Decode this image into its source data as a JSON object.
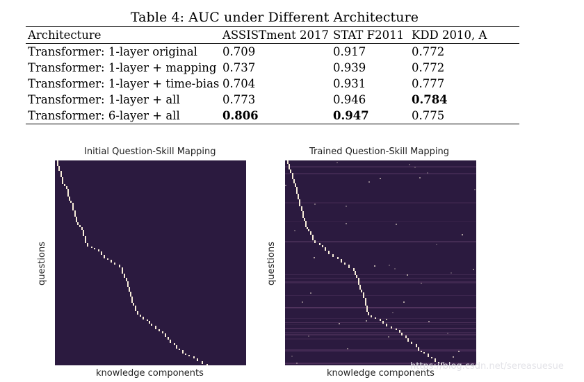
{
  "table": {
    "caption": "Table 4: AUC under Different Architecture",
    "headers": [
      "Architecture",
      "ASSISTment 2017",
      "STAT F2011",
      "KDD 2010, A"
    ],
    "rows": [
      {
        "name": "Transformer: 1-layer original",
        "values": [
          "0.709",
          "0.917",
          "0.772"
        ],
        "bold": [
          false,
          false,
          false
        ]
      },
      {
        "name": "Transformer: 1-layer + mapping",
        "values": [
          "0.737",
          "0.939",
          "0.772"
        ],
        "bold": [
          false,
          false,
          false
        ]
      },
      {
        "name": "Transformer: 1-layer + time-bias",
        "values": [
          "0.704",
          "0.931",
          "0.777"
        ],
        "bold": [
          false,
          false,
          false
        ]
      },
      {
        "name": "Transformer: 1-layer + all",
        "values": [
          "0.773",
          "0.946",
          "0.784"
        ],
        "bold": [
          false,
          false,
          true
        ]
      },
      {
        "name": "Transformer: 6-layer + all",
        "values": [
          "0.806",
          "0.947",
          "0.775"
        ],
        "bold": [
          true,
          true,
          false
        ]
      }
    ]
  },
  "figures": [
    {
      "title": "Initial Question-Skill Mapping",
      "xlabel": "knowledge components",
      "ylabel": "questions"
    },
    {
      "title": "Trained Question-Skill Mapping",
      "xlabel": "knowledge components",
      "ylabel": "questions"
    }
  ],
  "colors": {
    "heatmap_background": "#2b1a3f",
    "heatmap_high": "#f7ecd8",
    "heatmap_noise": "#5a3a66"
  },
  "watermark": "https://blog.csdn.net/sereasuesue"
}
